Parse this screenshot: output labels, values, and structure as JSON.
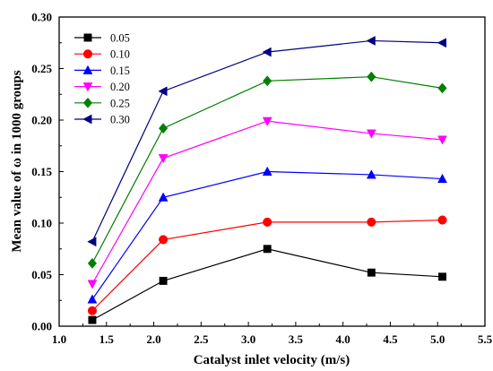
{
  "chart_data": {
    "type": "line",
    "title": "",
    "xlabel": "Catalyst inlet velocity (m/s)",
    "ylabel": "Mean value of ω in 1000 groups",
    "xlim": [
      1.0,
      5.5
    ],
    "ylim": [
      0.0,
      0.3
    ],
    "x_ticks": [
      "1.0",
      "1.5",
      "2.0",
      "2.5",
      "3.0",
      "3.5",
      "4.0",
      "4.5",
      "5.0",
      "5.5"
    ],
    "y_ticks": [
      "0.00",
      "0.05",
      "0.10",
      "0.15",
      "0.20",
      "0.25",
      "0.30"
    ],
    "grid": false,
    "legend_position": "top-left",
    "x": [
      1.35,
      2.1,
      3.2,
      4.3,
      5.05
    ],
    "series": [
      {
        "name": "0.05",
        "values": [
          0.006,
          0.044,
          0.075,
          0.052,
          0.048
        ],
        "color": "#000000",
        "marker": "square"
      },
      {
        "name": "0.10",
        "values": [
          0.015,
          0.084,
          0.101,
          0.101,
          0.103
        ],
        "color": "#ff0000",
        "marker": "circle"
      },
      {
        "name": "0.15",
        "values": [
          0.026,
          0.125,
          0.15,
          0.147,
          0.143
        ],
        "color": "#0000ff",
        "marker": "triangle-up"
      },
      {
        "name": "0.20",
        "values": [
          0.041,
          0.163,
          0.199,
          0.187,
          0.181
        ],
        "color": "#ff00ff",
        "marker": "triangle-down"
      },
      {
        "name": "0.25",
        "values": [
          0.061,
          0.192,
          0.238,
          0.242,
          0.231
        ],
        "color": "#008000",
        "marker": "diamond"
      },
      {
        "name": "0.30",
        "values": [
          0.082,
          0.228,
          0.266,
          0.277,
          0.275
        ],
        "color": "#000080",
        "marker": "triangle-left"
      }
    ]
  }
}
